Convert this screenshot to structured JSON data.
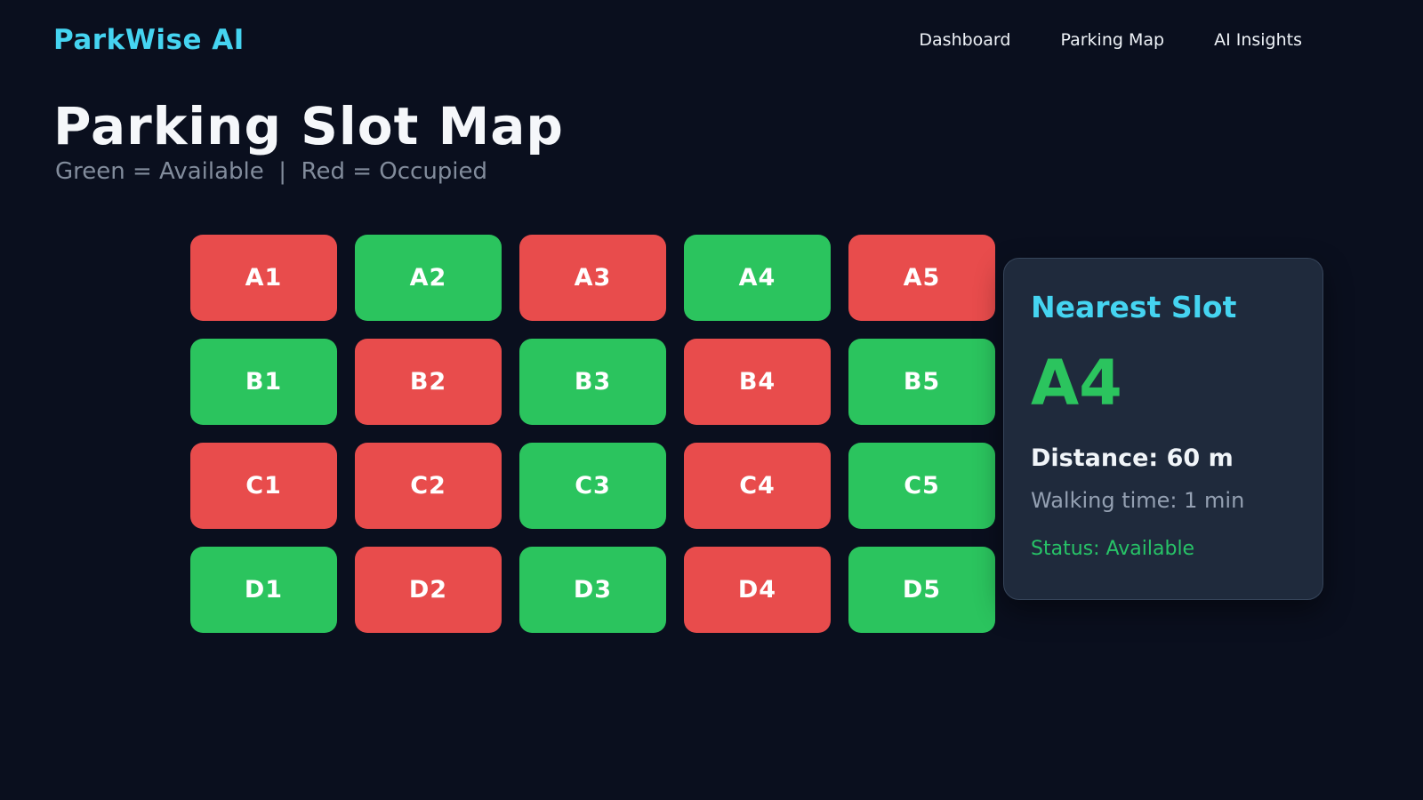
{
  "app": {
    "logo": "ParkWise AI",
    "nav": [
      {
        "label": "Dashboard"
      },
      {
        "label": "Parking Map"
      },
      {
        "label": "AI Insights"
      }
    ]
  },
  "page": {
    "title": "Parking Slot Map",
    "legend": "Green = Available  |  Red = Occupied"
  },
  "grid": {
    "rows": 4,
    "cols": 5,
    "slots": [
      {
        "id": "A1",
        "status": "occupied"
      },
      {
        "id": "A2",
        "status": "available"
      },
      {
        "id": "A3",
        "status": "occupied"
      },
      {
        "id": "A4",
        "status": "available"
      },
      {
        "id": "A5",
        "status": "occupied"
      },
      {
        "id": "B1",
        "status": "available"
      },
      {
        "id": "B2",
        "status": "occupied"
      },
      {
        "id": "B3",
        "status": "available"
      },
      {
        "id": "B4",
        "status": "occupied"
      },
      {
        "id": "B5",
        "status": "available"
      },
      {
        "id": "C1",
        "status": "occupied"
      },
      {
        "id": "C2",
        "status": "occupied"
      },
      {
        "id": "C3",
        "status": "available"
      },
      {
        "id": "C4",
        "status": "occupied"
      },
      {
        "id": "C5",
        "status": "available"
      },
      {
        "id": "D1",
        "status": "available"
      },
      {
        "id": "D2",
        "status": "occupied"
      },
      {
        "id": "D3",
        "status": "available"
      },
      {
        "id": "D4",
        "status": "occupied"
      },
      {
        "id": "D5",
        "status": "available"
      }
    ]
  },
  "nearest_slot_panel": {
    "title": "Nearest Slot",
    "slot_id": "A4",
    "distance_label": "Distance: 60 m",
    "walking_time_label": "Walking time: 1 min",
    "status_label": "Status: Available"
  },
  "colors": {
    "page_bg": "#0a0f1e",
    "panel_bg": "#1f2a3c",
    "available": "#2bc45e",
    "occupied": "#e84c4c",
    "accent_cyan": "#45d4f1",
    "status_green": "#27c367"
  }
}
